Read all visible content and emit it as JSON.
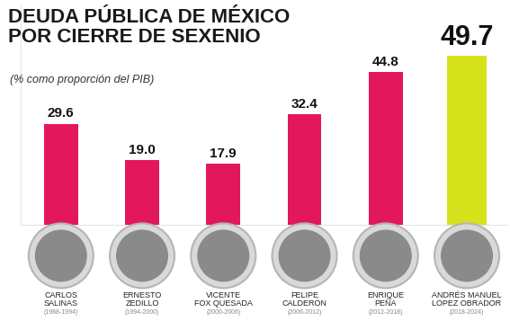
{
  "chart_data": {
    "type": "bar",
    "title": "DEUDA PÚBLICA DE MÉXICO\nPOR CIERRE DE SEXENIO",
    "subtitle": "(% como proporción del PIB)",
    "categories": [
      "CARLOS\nSALINAS",
      "ERNESTO\nZEDILLO",
      "VICENTE\nFOX QUESADA",
      "FELIPE\nCALDERÓN",
      "ENRIQUE\nPEÑA",
      "ANDRÉS MANUEL\nLOPEZ OBRADOR"
    ],
    "periods": [
      "(1988-1994)",
      "(1994-2000)",
      "(2000-2006)",
      "(2006-2012)",
      "(2012-2018)",
      "(2018-2024)"
    ],
    "values": [
      29.6,
      19.0,
      17.9,
      32.4,
      44.8,
      49.7
    ],
    "colors": [
      "#e3175c",
      "#e3175c",
      "#e3175c",
      "#e3175c",
      "#e3175c",
      "#d6e21c"
    ],
    "ylim": [
      0,
      65
    ],
    "yticks": [],
    "data_labels": true,
    "tick_labels": false,
    "grid": false
  }
}
